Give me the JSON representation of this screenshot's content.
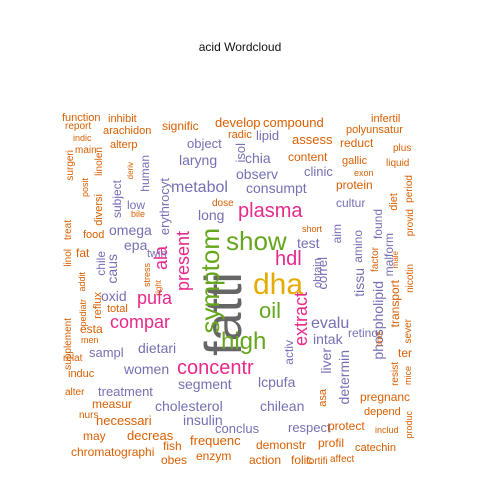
{
  "title": "acid  Wordcloud",
  "palette": [
    "#666666",
    "#e6ab02",
    "#66a61e",
    "#e7298a",
    "#7570b3",
    "#d95f02"
  ],
  "words": [
    {
      "text": "fatti",
      "c": 0
    },
    {
      "text": "dha",
      "c": 1
    },
    {
      "text": "show",
      "c": 2
    },
    {
      "text": "symptom",
      "c": 2
    },
    {
      "text": "high",
      "c": 2
    },
    {
      "text": "oil",
      "c": 2
    },
    {
      "text": "plasma",
      "c": 3
    },
    {
      "text": "concentr",
      "c": 3
    },
    {
      "text": "compar",
      "c": 3
    },
    {
      "text": "present",
      "c": 3
    },
    {
      "text": "pufa",
      "c": 3
    },
    {
      "text": "hdl",
      "c": 3
    },
    {
      "text": "extract",
      "c": 3
    },
    {
      "text": "ala",
      "c": 3
    },
    {
      "text": "metabol",
      "c": 4
    },
    {
      "text": "consumpt",
      "c": 4
    },
    {
      "text": "evalu",
      "c": 4
    },
    {
      "text": "dietari",
      "c": 4
    },
    {
      "text": "women",
      "c": 4
    },
    {
      "text": "segment",
      "c": 4
    },
    {
      "text": "lcpufa",
      "c": 4
    },
    {
      "text": "cholesterol",
      "c": 4
    },
    {
      "text": "chilean",
      "c": 4
    },
    {
      "text": "insulin",
      "c": 4
    },
    {
      "text": "phospholipid",
      "c": 4
    },
    {
      "text": "tissu",
      "c": 4
    },
    {
      "text": "amino",
      "c": 4
    },
    {
      "text": "liver",
      "c": 4
    },
    {
      "text": "determin",
      "c": 4
    },
    {
      "text": "correl",
      "c": 4
    },
    {
      "text": "chia",
      "c": 4
    },
    {
      "text": "observ",
      "c": 4
    },
    {
      "text": "laryng",
      "c": 4
    },
    {
      "text": "omega",
      "c": 4
    },
    {
      "text": "epa",
      "c": 4
    },
    {
      "text": "caus",
      "c": 4
    },
    {
      "text": "oxid",
      "c": 4
    },
    {
      "text": "test",
      "c": 4
    },
    {
      "text": "erythrocyt",
      "c": 4
    },
    {
      "text": "intak",
      "c": 4
    },
    {
      "text": "long",
      "c": 4
    },
    {
      "text": "treatment",
      "c": 4
    },
    {
      "text": "sampl",
      "c": 4
    },
    {
      "text": "conclus",
      "c": 4
    },
    {
      "text": "respect",
      "c": 4
    },
    {
      "text": "clinic",
      "c": 4
    },
    {
      "text": "lipid",
      "c": 4
    },
    {
      "text": "object",
      "c": 4
    },
    {
      "text": "isol",
      "c": 4
    },
    {
      "text": "human",
      "c": 4
    },
    {
      "text": "subject",
      "c": 4
    },
    {
      "text": "low",
      "c": 4
    },
    {
      "text": "chile",
      "c": 4
    },
    {
      "text": "cultur",
      "c": 4
    },
    {
      "text": "found",
      "c": 4
    },
    {
      "text": "activ",
      "c": 4
    },
    {
      "text": "aim",
      "c": 4
    },
    {
      "text": "obtain",
      "c": 4
    },
    {
      "text": "retino",
      "c": 4
    },
    {
      "text": "malform",
      "c": 4
    },
    {
      "text": "twin",
      "c": 4
    },
    {
      "text": "compound",
      "c": 5
    },
    {
      "text": "develop",
      "c": 5
    },
    {
      "text": "signific",
      "c": 5
    },
    {
      "text": "radic",
      "c": 5
    },
    {
      "text": "assess",
      "c": 5
    },
    {
      "text": "content",
      "c": 5
    },
    {
      "text": "reduct",
      "c": 5
    },
    {
      "text": "infertil",
      "c": 5
    },
    {
      "text": "polyunsatur",
      "c": 5
    },
    {
      "text": "plus",
      "c": 5
    },
    {
      "text": "gallic",
      "c": 5
    },
    {
      "text": "liquid",
      "c": 5
    },
    {
      "text": "exon",
      "c": 5
    },
    {
      "text": "protein",
      "c": 5
    },
    {
      "text": "period",
      "c": 5
    },
    {
      "text": "provid",
      "c": 5
    },
    {
      "text": "diet",
      "c": 5
    },
    {
      "text": "nicotin",
      "c": 5
    },
    {
      "text": "factor",
      "c": 5
    },
    {
      "text": "male",
      "c": 5
    },
    {
      "text": "transport",
      "c": 5
    },
    {
      "text": "sever",
      "c": 5
    },
    {
      "text": "ter",
      "c": 5
    },
    {
      "text": "resist",
      "c": 5
    },
    {
      "text": "mice",
      "c": 5
    },
    {
      "text": "pregnanc",
      "c": 5
    },
    {
      "text": "depend",
      "c": 5
    },
    {
      "text": "includ",
      "c": 5
    },
    {
      "text": "produc",
      "c": 5
    },
    {
      "text": "catechin",
      "c": 5
    },
    {
      "text": "affect",
      "c": 5
    },
    {
      "text": "fortifi",
      "c": 5
    },
    {
      "text": "folic",
      "c": 5
    },
    {
      "text": "profil",
      "c": 5
    },
    {
      "text": "protect",
      "c": 5
    },
    {
      "text": "asa",
      "c": 5
    },
    {
      "text": "demonstr",
      "c": 5
    },
    {
      "text": "action",
      "c": 5
    },
    {
      "text": "enzym",
      "c": 5
    },
    {
      "text": "frequenc",
      "c": 5
    },
    {
      "text": "obes",
      "c": 5
    },
    {
      "text": "fish",
      "c": 5
    },
    {
      "text": "decreas",
      "c": 5
    },
    {
      "text": "chromatographi",
      "c": 5
    },
    {
      "text": "may",
      "c": 5
    },
    {
      "text": "necessari",
      "c": 5
    },
    {
      "text": "nurs",
      "c": 5
    },
    {
      "text": "measur",
      "c": 5
    },
    {
      "text": "alter",
      "c": 5
    },
    {
      "text": "induc",
      "c": 5
    },
    {
      "text": "relat",
      "c": 5
    },
    {
      "text": "men",
      "c": 5
    },
    {
      "text": "esta",
      "c": 5
    },
    {
      "text": "supplement",
      "c": 5
    },
    {
      "text": "reflux",
      "c": 5
    },
    {
      "text": "total",
      "c": 5
    },
    {
      "text": "fat",
      "c": 5
    },
    {
      "text": "food",
      "c": 5
    },
    {
      "text": "treat",
      "c": 5
    },
    {
      "text": "linol",
      "c": 5
    },
    {
      "text": "addit",
      "c": 5
    },
    {
      "text": "pediatr",
      "c": 5
    },
    {
      "text": "diversi",
      "c": 5
    },
    {
      "text": "linolen",
      "c": 5
    },
    {
      "text": "posit",
      "c": 5
    },
    {
      "text": "surgeri",
      "c": 5
    },
    {
      "text": "main",
      "c": 5
    },
    {
      "text": "indic",
      "c": 5
    },
    {
      "text": "report",
      "c": 5
    },
    {
      "text": "function",
      "c": 5
    },
    {
      "text": "inhibit",
      "c": 5
    },
    {
      "text": "arachidon",
      "c": 5
    },
    {
      "text": "alterp",
      "c": 5
    },
    {
      "text": "deriv",
      "c": 5
    },
    {
      "text": "bile",
      "c": 5
    },
    {
      "text": "stress",
      "c": 5
    },
    {
      "text": "right",
      "c": 5
    },
    {
      "text": "dose",
      "c": 5
    },
    {
      "text": "short",
      "c": 5
    },
    {
      "text": "time",
      "c": 5
    }
  ]
}
